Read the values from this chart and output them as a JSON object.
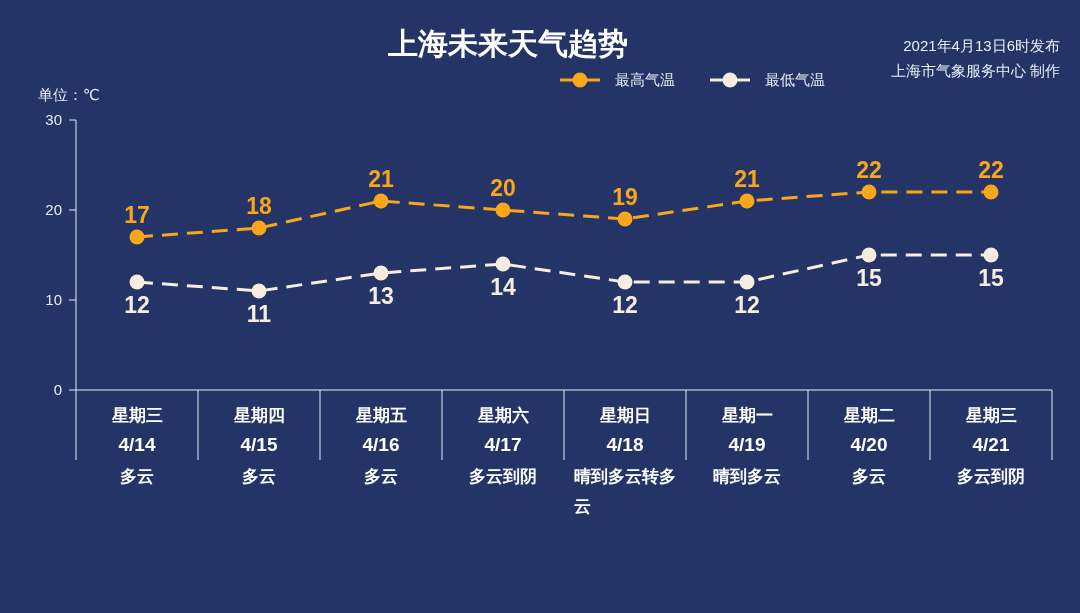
{
  "chart_data": {
    "type": "line",
    "title": "上海未来天气趋势",
    "ylabel": "单位：℃",
    "annotations": [
      "2021年4月13日6时发布",
      "上海市气象服务中心 制作"
    ],
    "categories": [
      "星期三\n4/14\n多云",
      "星期四\n4/15\n多云",
      "星期五\n4/16\n多云",
      "星期六\n4/17\n多云到阴",
      "星期日\n4/18\n晴到多云转多云",
      "星期一\n4/19\n晴到多云",
      "星期二\n4/20\n多云",
      "星期三\n4/21\n多云到阴"
    ],
    "series": [
      {
        "name": "最高气温",
        "color": "#f9a61a",
        "values": [
          17,
          18,
          21,
          20,
          19,
          21,
          22,
          22
        ]
      },
      {
        "name": "最低气温",
        "color": "#f6ece0",
        "values": [
          12,
          11,
          13,
          14,
          12,
          12,
          15,
          15
        ]
      }
    ],
    "ylim": [
      0,
      30
    ],
    "yticks": [
      0,
      10,
      20,
      30
    ],
    "legend": "top",
    "marker": "circle",
    "line_style": "dashed",
    "data_labels": true
  }
}
